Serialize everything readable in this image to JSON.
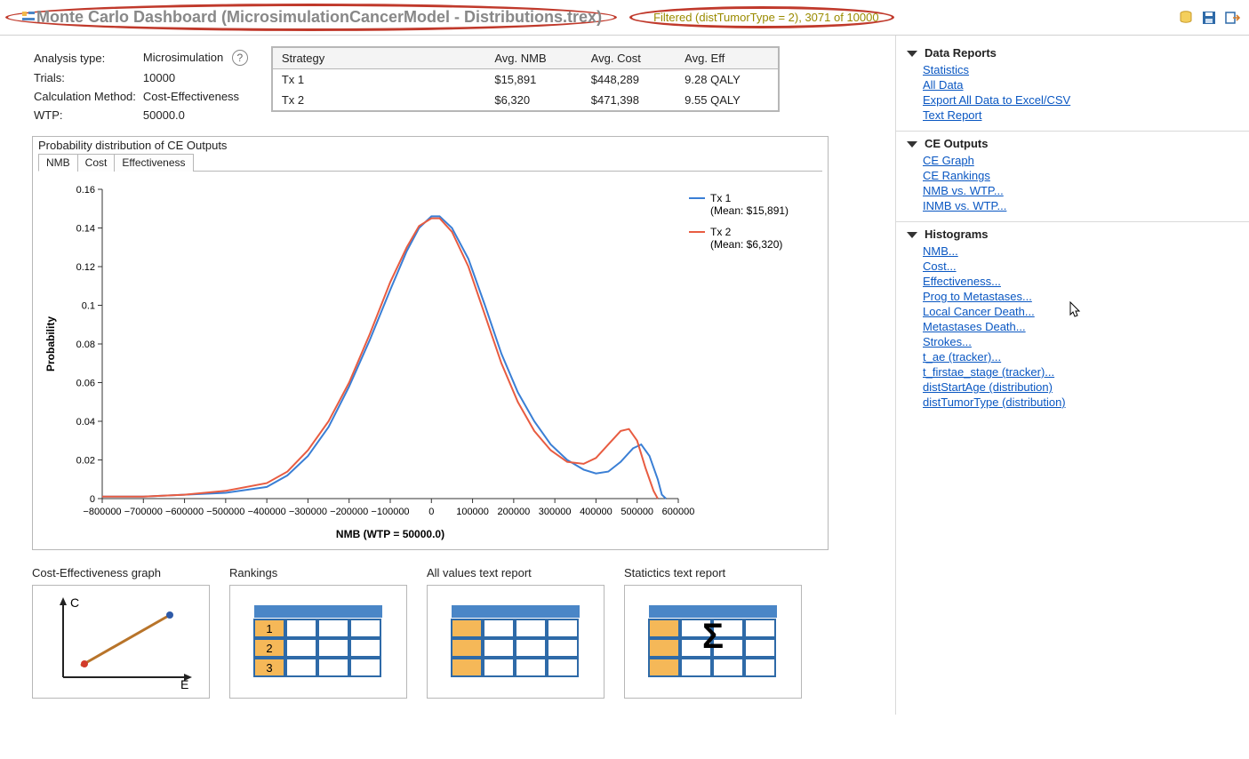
{
  "title": "Monte Carlo Dashboard (MicrosimulationCancerModel - Distributions.trex)",
  "filter_text": "Filtered (distTumorType = 2), 3071 of 10000",
  "annotation_color": "#c0392b",
  "toolbar_icons": [
    "database-icon",
    "save-icon",
    "export-icon"
  ],
  "info": {
    "analysis_type_label": "Analysis type:",
    "analysis_type_value": "Microsimulation",
    "trials_label": "Trials:",
    "trials_value": "10000",
    "calc_label": "Calculation Method:",
    "calc_value": "Cost-Effectiveness",
    "wtp_label": "WTP:",
    "wtp_value": "50000.0"
  },
  "strategy_table": {
    "columns": [
      "Strategy",
      "Avg. NMB",
      "Avg. Cost",
      "Avg. Eff"
    ],
    "rows": [
      [
        "Tx 1",
        "$15,891",
        "$448,289",
        "9.28 QALY"
      ],
      [
        "Tx 2",
        "$6,320",
        "$471,398",
        "9.55 QALY"
      ]
    ]
  },
  "chart": {
    "panel_title": "Probability distribution of CE Outputs",
    "tabs": [
      "NMB",
      "Cost",
      "Effectiveness"
    ],
    "active_tab": 0,
    "type": "line",
    "xlabel": "NMB (WTP = 50000.0)",
    "ylabel": "Probability",
    "label_fontsize": 12,
    "title_fontsize": 12,
    "xlim": [
      -800000,
      600000
    ],
    "xtick_step": 100000,
    "ylim": [
      0,
      0.16
    ],
    "yticks": [
      0,
      0.02,
      0.04,
      0.06,
      0.08,
      0.1,
      0.12,
      0.14,
      0.16
    ],
    "background_color": "#ffffff",
    "axis_color": "#333333",
    "series": [
      {
        "name": "Tx 1",
        "legend_sub": "(Mean: $15,891)",
        "color": "#3a7fd5",
        "line_width": 2,
        "points": [
          [
            -800000,
            0.001
          ],
          [
            -700000,
            0.001
          ],
          [
            -600000,
            0.002
          ],
          [
            -500000,
            0.003
          ],
          [
            -400000,
            0.006
          ],
          [
            -350000,
            0.012
          ],
          [
            -300000,
            0.022
          ],
          [
            -250000,
            0.037
          ],
          [
            -200000,
            0.058
          ],
          [
            -150000,
            0.082
          ],
          [
            -100000,
            0.108
          ],
          [
            -60000,
            0.128
          ],
          [
            -30000,
            0.14
          ],
          [
            0,
            0.146
          ],
          [
            20000,
            0.146
          ],
          [
            50000,
            0.14
          ],
          [
            90000,
            0.124
          ],
          [
            130000,
            0.1
          ],
          [
            170000,
            0.075
          ],
          [
            210000,
            0.055
          ],
          [
            250000,
            0.04
          ],
          [
            290000,
            0.028
          ],
          [
            330000,
            0.02
          ],
          [
            370000,
            0.015
          ],
          [
            400000,
            0.013
          ],
          [
            430000,
            0.014
          ],
          [
            460000,
            0.019
          ],
          [
            490000,
            0.026
          ],
          [
            510000,
            0.028
          ],
          [
            530000,
            0.022
          ],
          [
            550000,
            0.01
          ],
          [
            560000,
            0.002
          ],
          [
            570000,
            0.0
          ]
        ]
      },
      {
        "name": "Tx 2",
        "legend_sub": "(Mean: $6,320)",
        "color": "#e85c41",
        "line_width": 2,
        "points": [
          [
            -800000,
            0.001
          ],
          [
            -700000,
            0.001
          ],
          [
            -600000,
            0.002
          ],
          [
            -500000,
            0.004
          ],
          [
            -400000,
            0.008
          ],
          [
            -350000,
            0.014
          ],
          [
            -300000,
            0.025
          ],
          [
            -250000,
            0.04
          ],
          [
            -200000,
            0.06
          ],
          [
            -150000,
            0.085
          ],
          [
            -100000,
            0.112
          ],
          [
            -60000,
            0.13
          ],
          [
            -30000,
            0.141
          ],
          [
            0,
            0.145
          ],
          [
            20000,
            0.145
          ],
          [
            50000,
            0.138
          ],
          [
            90000,
            0.12
          ],
          [
            130000,
            0.095
          ],
          [
            170000,
            0.07
          ],
          [
            210000,
            0.05
          ],
          [
            250000,
            0.035
          ],
          [
            290000,
            0.025
          ],
          [
            330000,
            0.019
          ],
          [
            370000,
            0.018
          ],
          [
            400000,
            0.021
          ],
          [
            430000,
            0.028
          ],
          [
            460000,
            0.035
          ],
          [
            480000,
            0.036
          ],
          [
            500000,
            0.03
          ],
          [
            520000,
            0.016
          ],
          [
            540000,
            0.004
          ],
          [
            550000,
            0.0
          ]
        ]
      }
    ]
  },
  "thumbnails": [
    {
      "title": "Cost-Effectiveness graph",
      "kind": "ce_scatter"
    },
    {
      "title": "Rankings",
      "kind": "rank_table"
    },
    {
      "title": "All values text report",
      "kind": "plain_table"
    },
    {
      "title": "Statictics text report",
      "kind": "sigma_table"
    }
  ],
  "sidebar": [
    {
      "title": "Data Reports",
      "links": [
        "Statistics",
        "All Data",
        "Export All Data to Excel/CSV",
        "Text Report"
      ]
    },
    {
      "title": "CE Outputs",
      "links": [
        "CE Graph",
        "CE Rankings",
        "NMB vs. WTP...",
        "INMB vs. WTP..."
      ]
    },
    {
      "title": "Histograms",
      "links": [
        "NMB...",
        "Cost...",
        "Effectiveness...",
        "Prog to Metastases...",
        "Local Cancer Death...",
        "Metastases Death...",
        "Strokes...",
        "t_ae (tracker)...",
        "t_firstae_stage (tracker)...",
        "distStartAge (distribution)",
        "distTumorType (distribution)"
      ]
    }
  ],
  "thumb_style": {
    "frame_color": "#2e6aa8",
    "header_color": "#4a86c7",
    "cell_color": "#ffffff",
    "highlight_color": "#f5b858",
    "axis_line_color": "#222222",
    "scatter_line_color": "#b8742a",
    "point_red": "#d23b2a",
    "point_blue": "#2e5aa8"
  }
}
